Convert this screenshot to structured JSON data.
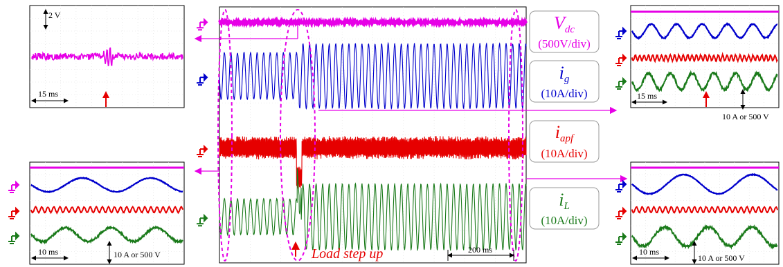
{
  "chart_data": {
    "type": "line",
    "title": "",
    "main_scope": {
      "channels": [
        {
          "symbol": "V",
          "subscript": "dc",
          "scale": "(500V/div)",
          "color": "#e600e6",
          "offset_ratio": 0.06,
          "amp_before": 0.0,
          "amp_after": 0.0
        },
        {
          "symbol": "i",
          "subscript": "g",
          "scale": "(10A/div)",
          "color": "#0000cc",
          "offset_ratio": 0.27,
          "amp_before": 0.39,
          "amp_after": 0.54
        },
        {
          "symbol": "i",
          "subscript": "apf",
          "scale": "(10A/div)",
          "color": "#e60000",
          "offset_ratio": 0.55,
          "amp_before": 0.18,
          "amp_after": 0.18
        },
        {
          "symbol": "i",
          "subscript": "L",
          "scale": "(10A/div)",
          "color": "#1a7a1a",
          "offset_ratio": 0.82,
          "amp_before": 0.3,
          "amp_after": 0.55
        }
      ],
      "event_label": "Load step up",
      "time_scale_label": "200 ms",
      "event_time_fraction": 0.26
    },
    "zoom_top_left": {
      "scale_v": "2 V",
      "scale_t": "15 ms"
    },
    "zoom_top_right": {
      "scale_t": "15 ms",
      "scale_y": "10 A or 500 V"
    },
    "zoom_bottom_left": {
      "scale_t": "10 ms",
      "scale_y": "10 A or 500 V"
    },
    "zoom_bottom_right": {
      "scale_t": "10 ms",
      "scale_y": "10 A or 500 V"
    },
    "colors": {
      "magenta": "#e600e6",
      "blue": "#0000cc",
      "red": "#e60000",
      "green": "#1a7a1a",
      "dashed": "#e600e6"
    }
  }
}
